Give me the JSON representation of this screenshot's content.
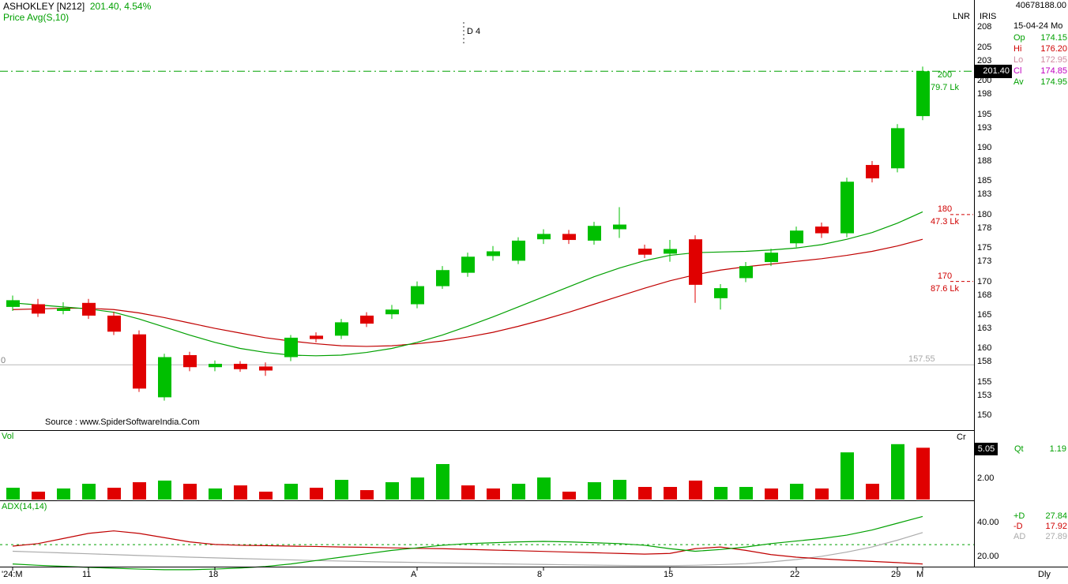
{
  "colors": {
    "bull": "#00BF00",
    "bear": "#E00000",
    "ma_fast": "#00A000",
    "ma_slow": "#C00000",
    "gray_line": "#B8B8B8",
    "adx_gray": "#ABABAB",
    "text_green": "#00A000",
    "text_red": "#D00000",
    "magenta": "#C000C0",
    "pink": "#D08AA0"
  },
  "header": {
    "symbol": "ASHOKLEY [N212]",
    "quote": "201.40, 4.54%",
    "indicator": "Price Avg(S,10)"
  },
  "top_right": {
    "lnr": "LNR",
    "iris": "IRIS",
    "ref_number": "40678188.00",
    "date": "15-04-24 Mo",
    "ohlc": [
      {
        "label": "Op",
        "value": "174.15",
        "color": "#00A000"
      },
      {
        "label": "Hi",
        "value": "176.20",
        "color": "#D00000"
      },
      {
        "label": "Lo",
        "value": "172.95",
        "color": "#D08AA0"
      },
      {
        "label": "Cl",
        "value": "174.85",
        "color": "#C000C0"
      },
      {
        "label": "Av",
        "value": "174.95",
        "color": "#00A000"
      }
    ]
  },
  "chart_labels": {
    "d4": "D 4",
    "source": "Source : www.SpiderSoftwareIndia.Com",
    "last_price": "201.40",
    "ref_price_label": "157.55",
    "left_marker": "0",
    "levels": [
      {
        "price": 200,
        "price_label": "200",
        "volume_label": "79.7 Lk",
        "color": "#00A000"
      },
      {
        "price": 180,
        "price_label": "180",
        "volume_label": "47.3 Lk",
        "color": "#D00000"
      },
      {
        "price": 170,
        "price_label": "170",
        "volume_label": "87.6 Lk",
        "color": "#D00000"
      }
    ]
  },
  "price_axis": {
    "ticks": [
      208,
      205,
      203,
      200,
      198,
      195,
      193,
      190,
      188,
      185,
      183,
      180,
      178,
      175,
      173,
      170,
      168,
      165,
      163,
      160,
      158,
      155,
      153,
      150
    ]
  },
  "volume_pane": {
    "label": "Vol",
    "unit": "Cr",
    "current": "5.05",
    "qt_label": "Qt",
    "qt_value": "1.19",
    "scale_label": "2.00",
    "scale_value": 2
  },
  "adx_pane": {
    "label": "ADX(14,14)",
    "scales": [
      {
        "label": "40.00",
        "value": 40
      },
      {
        "label": "20.00",
        "value": 20
      }
    ],
    "readings": [
      {
        "label": "+D",
        "value": "27.84",
        "color": "#00A000"
      },
      {
        "label": "-D",
        "value": "17.92",
        "color": "#D00000"
      },
      {
        "label": "AD",
        "value": "27.89",
        "color": "#ABABAB"
      }
    ],
    "dashed_level": 27.4
  },
  "x_axis": {
    "labels": [
      {
        "text": "'24:M",
        "candle": 0
      },
      {
        "text": "11",
        "candle": 3
      },
      {
        "text": "18",
        "candle": 8
      },
      {
        "text": "A",
        "candle": 16
      },
      {
        "text": "8",
        "candle": 21
      },
      {
        "text": "15",
        "candle": 26
      },
      {
        "text": "22",
        "candle": 31
      },
      {
        "text": "29",
        "candle": 35
      },
      {
        "text": "M",
        "candle": 36
      }
    ],
    "period": "Dly"
  },
  "chart_data": {
    "type": "candlestick",
    "symbol": "ASHOKLEY [N212]",
    "periodicity": "Daily",
    "price_axis_range": [
      150,
      208
    ],
    "last_price": 201.4,
    "prev_close_line": 157.55,
    "columns": [
      "open",
      "high",
      "low",
      "close",
      "volume_cr",
      "bullish",
      "vol_bullish"
    ],
    "candles": [
      [
        166.2,
        167.9,
        165.6,
        167.2,
        1.15,
        1,
        1
      ],
      [
        166.6,
        167.4,
        164.7,
        165.2,
        0.77,
        0,
        0
      ],
      [
        165.6,
        166.9,
        165.1,
        166.0,
        1.08,
        1,
        1
      ],
      [
        166.8,
        167.4,
        164.4,
        164.9,
        1.54,
        0,
        1
      ],
      [
        164.9,
        165.5,
        162.0,
        162.5,
        1.15,
        0,
        0
      ],
      [
        162.1,
        162.7,
        153.5,
        154.0,
        1.69,
        0,
        0
      ],
      [
        152.7,
        159.2,
        152.2,
        158.7,
        1.85,
        1,
        1
      ],
      [
        159.0,
        159.5,
        156.6,
        157.2,
        1.54,
        0,
        0
      ],
      [
        157.2,
        158.2,
        156.6,
        157.7,
        1.08,
        1,
        1
      ],
      [
        157.7,
        158.1,
        156.5,
        156.9,
        1.38,
        0,
        0
      ],
      [
        157.3,
        157.9,
        155.9,
        156.7,
        0.77,
        0,
        0
      ],
      [
        158.7,
        162.0,
        158.1,
        161.6,
        1.54,
        1,
        1
      ],
      [
        161.9,
        162.4,
        160.9,
        161.4,
        1.15,
        0,
        0
      ],
      [
        161.9,
        164.4,
        161.4,
        163.9,
        1.92,
        1,
        1
      ],
      [
        164.9,
        165.4,
        163.2,
        163.7,
        0.92,
        0,
        0
      ],
      [
        165.1,
        166.5,
        164.4,
        165.8,
        1.69,
        1,
        1
      ],
      [
        166.6,
        170.0,
        166.0,
        169.3,
        2.15,
        1,
        1
      ],
      [
        169.3,
        172.3,
        168.9,
        171.7,
        3.46,
        1,
        1
      ],
      [
        171.3,
        174.3,
        170.7,
        173.7,
        1.38,
        1,
        0
      ],
      [
        173.8,
        175.3,
        173.1,
        174.5,
        1.08,
        1,
        0
      ],
      [
        173.1,
        176.6,
        172.6,
        176.1,
        1.54,
        1,
        1
      ],
      [
        176.3,
        177.8,
        175.6,
        177.1,
        2.15,
        1,
        1
      ],
      [
        177.1,
        177.7,
        175.6,
        176.2,
        0.77,
        0,
        0
      ],
      [
        176.1,
        178.9,
        175.5,
        178.3,
        1.69,
        1,
        1
      ],
      [
        177.8,
        181.1,
        176.5,
        178.5,
        1.92,
        1,
        1
      ],
      [
        174.9,
        175.5,
        173.5,
        174.0,
        1.23,
        0,
        0
      ],
      [
        174.15,
        176.2,
        172.95,
        174.85,
        1.23,
        1,
        0
      ],
      [
        176.3,
        176.9,
        166.8,
        169.5,
        1.85,
        0,
        0
      ],
      [
        167.5,
        169.6,
        165.8,
        169.0,
        1.23,
        1,
        1
      ],
      [
        170.5,
        172.9,
        169.9,
        172.3,
        1.23,
        1,
        1
      ],
      [
        172.9,
        174.9,
        172.3,
        174.3,
        1.08,
        1,
        0
      ],
      [
        175.7,
        178.2,
        175.1,
        177.6,
        1.54,
        1,
        1
      ],
      [
        178.2,
        178.8,
        176.5,
        177.2,
        1.08,
        0,
        0
      ],
      [
        177.2,
        185.5,
        176.6,
        184.9,
        4.6,
        1,
        1
      ],
      [
        187.4,
        188.0,
        184.8,
        185.4,
        1.54,
        0,
        0
      ],
      [
        186.9,
        193.5,
        186.3,
        192.9,
        5.4,
        1,
        1
      ],
      [
        194.7,
        202.1,
        194.1,
        201.4,
        5.05,
        1,
        0
      ]
    ],
    "ma_fast_sma10": [
      166.8,
      166.5,
      166.2,
      165.9,
      165.4,
      164.4,
      163.2,
      162.0,
      160.9,
      160.0,
      159.4,
      159.0,
      158.9,
      159.0,
      159.4,
      160.0,
      160.9,
      162.0,
      163.3,
      164.7,
      166.2,
      167.7,
      169.2,
      170.7,
      172.0,
      173.1,
      173.9,
      174.3,
      174.4,
      174.5,
      174.7,
      175.0,
      175.5,
      176.3,
      177.3,
      178.7,
      180.4
    ],
    "ma_slow": [
      165.8,
      165.9,
      166.0,
      166.0,
      165.8,
      165.3,
      164.6,
      163.8,
      163.0,
      162.3,
      161.6,
      161.1,
      160.7,
      160.4,
      160.3,
      160.4,
      160.7,
      161.1,
      161.7,
      162.4,
      163.3,
      164.3,
      165.4,
      166.6,
      167.8,
      169.0,
      170.1,
      171.0,
      171.7,
      172.2,
      172.6,
      173.0,
      173.4,
      173.9,
      174.5,
      175.3,
      176.3
    ],
    "adx": {
      "plus_d": [
        16,
        15.2,
        14.6,
        14,
        13.5,
        13,
        12.6,
        12.6,
        13,
        13.6,
        14.5,
        16,
        18,
        20,
        22,
        24,
        25.5,
        27,
        28,
        28.5,
        29,
        29.3,
        29,
        28.5,
        28,
        27,
        25,
        23.5,
        24.5,
        26,
        28,
        29.5,
        31,
        33,
        36,
        40,
        44
      ],
      "minus_d": [
        26.5,
        28,
        31,
        34,
        35.5,
        34,
        31.5,
        29,
        27.5,
        27,
        26.8,
        26.5,
        26.3,
        26,
        25.8,
        25.5,
        25.2,
        25,
        24.6,
        24.2,
        23.8,
        23.4,
        23,
        22.6,
        22.2,
        21.8,
        22.2,
        25,
        26,
        24,
        21.5,
        20,
        19,
        18.2,
        17.5,
        16.8,
        16
      ],
      "avg": [
        23.5,
        23,
        22.5,
        22,
        21.5,
        21,
        20.5,
        20,
        19.6,
        19.2,
        18.8,
        18.4,
        18,
        17.7,
        17.4,
        17.1,
        16.9,
        16.6,
        16.4,
        16.1,
        15.9,
        15.7,
        15.5,
        15.3,
        15.1,
        15,
        15,
        15.2,
        15.6,
        16.2,
        17.2,
        18.6,
        20.5,
        23,
        26,
        30,
        34.5
      ]
    }
  }
}
